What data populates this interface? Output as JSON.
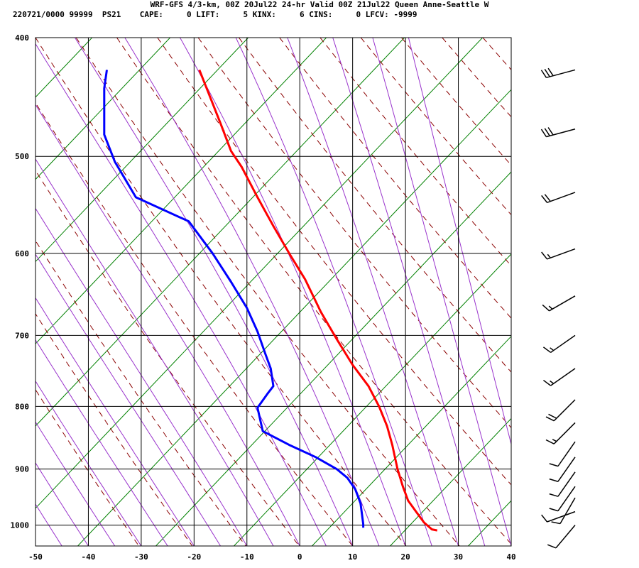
{
  "header": {
    "line1": "WRF-GFS 4/3-km, 00Z 20Jul22 24-hr Valid 00Z 21Jul22 Queen Anne-Seattle W",
    "line2": "220721/0000 99999  PS21    CAPE:     0 LIFT:     5 KINX:     6 CINS:     0 LFCV: -9999"
  },
  "colors": {
    "temperature": "#ff0000",
    "dewpoint": "#0000ff",
    "dry_adiabat": "#8b0000",
    "moist_adiabat": "#9933cc",
    "isotherm_diag": "#008000",
    "grid": "#000000",
    "wind_barb": "#000000"
  },
  "chart_data": {
    "type": "line",
    "title": "",
    "xlabel": "",
    "ylabel": "",
    "xlim": [
      -50,
      40
    ],
    "ylim": [
      1040,
      400
    ],
    "y_scale": "log",
    "x_ticks": [
      -50,
      -40,
      -30,
      -20,
      -10,
      0,
      10,
      20,
      30,
      40
    ],
    "x_tick_labels": [
      "-50",
      "-40",
      "-30",
      "-20",
      "-10",
      "0",
      "10",
      "20",
      "30",
      "40"
    ],
    "y_ticks": [
      400,
      500,
      600,
      700,
      800,
      900,
      1000
    ],
    "y_tick_labels": [
      "400",
      "500",
      "600",
      "700",
      "800",
      "900",
      "1000"
    ],
    "grid": true,
    "series": [
      {
        "key": "temperature",
        "points": [
          [
            26,
            1010
          ],
          [
            25,
            1008
          ],
          [
            23.5,
            995
          ],
          [
            22,
            975
          ],
          [
            20.5,
            955
          ],
          [
            19.5,
            930
          ],
          [
            18.5,
            900
          ],
          [
            18,
            880
          ],
          [
            17.5,
            860
          ],
          [
            16.5,
            830
          ],
          [
            15,
            800
          ],
          [
            13,
            770
          ],
          [
            10,
            740
          ],
          [
            7,
            705
          ],
          [
            4,
            670
          ],
          [
            1,
            630
          ],
          [
            -2,
            600
          ],
          [
            -5,
            570
          ],
          [
            -8,
            540
          ],
          [
            -11,
            510
          ],
          [
            -13,
            495
          ],
          [
            -15,
            470
          ],
          [
            -19,
            425
          ]
        ]
      },
      {
        "key": "dewpoint",
        "points": [
          [
            12,
            1005
          ],
          [
            12,
            998
          ],
          [
            11.5,
            960
          ],
          [
            10.5,
            935
          ],
          [
            9,
            915
          ],
          [
            7,
            900
          ],
          [
            3,
            880
          ],
          [
            -2,
            860
          ],
          [
            -7,
            838
          ],
          [
            -7.5,
            820
          ],
          [
            -8,
            802
          ],
          [
            -6,
            780
          ],
          [
            -5,
            770
          ],
          [
            -5.5,
            745
          ],
          [
            -6.5,
            725
          ],
          [
            -8,
            695
          ],
          [
            -10,
            665
          ],
          [
            -13,
            633
          ],
          [
            -16.5,
            600
          ],
          [
            -21,
            565
          ],
          [
            -31,
            540
          ],
          [
            -35,
            505
          ],
          [
            -37,
            480
          ],
          [
            -37,
            455
          ],
          [
            -37,
            440
          ],
          [
            -36.5,
            425
          ]
        ]
      }
    ],
    "wind_barbs": [
      {
        "p": 425,
        "dir": 255,
        "spd": 30
      },
      {
        "p": 475,
        "dir": 255,
        "spd": 30
      },
      {
        "p": 535,
        "dir": 250,
        "spd": 20
      },
      {
        "p": 595,
        "dir": 250,
        "spd": 15
      },
      {
        "p": 650,
        "dir": 240,
        "spd": 15
      },
      {
        "p": 700,
        "dir": 235,
        "spd": 15
      },
      {
        "p": 745,
        "dir": 235,
        "spd": 15
      },
      {
        "p": 790,
        "dir": 225,
        "spd": 20
      },
      {
        "p": 825,
        "dir": 225,
        "spd": 15
      },
      {
        "p": 855,
        "dir": 215,
        "spd": 10
      },
      {
        "p": 880,
        "dir": 215,
        "spd": 10
      },
      {
        "p": 905,
        "dir": 215,
        "spd": 10
      },
      {
        "p": 930,
        "dir": 215,
        "spd": 10
      },
      {
        "p": 950,
        "dir": 210,
        "spd": 10
      },
      {
        "p": 975,
        "dir": 250,
        "spd": 10
      },
      {
        "p": 1000,
        "dir": 220,
        "spd": 10
      }
    ]
  }
}
